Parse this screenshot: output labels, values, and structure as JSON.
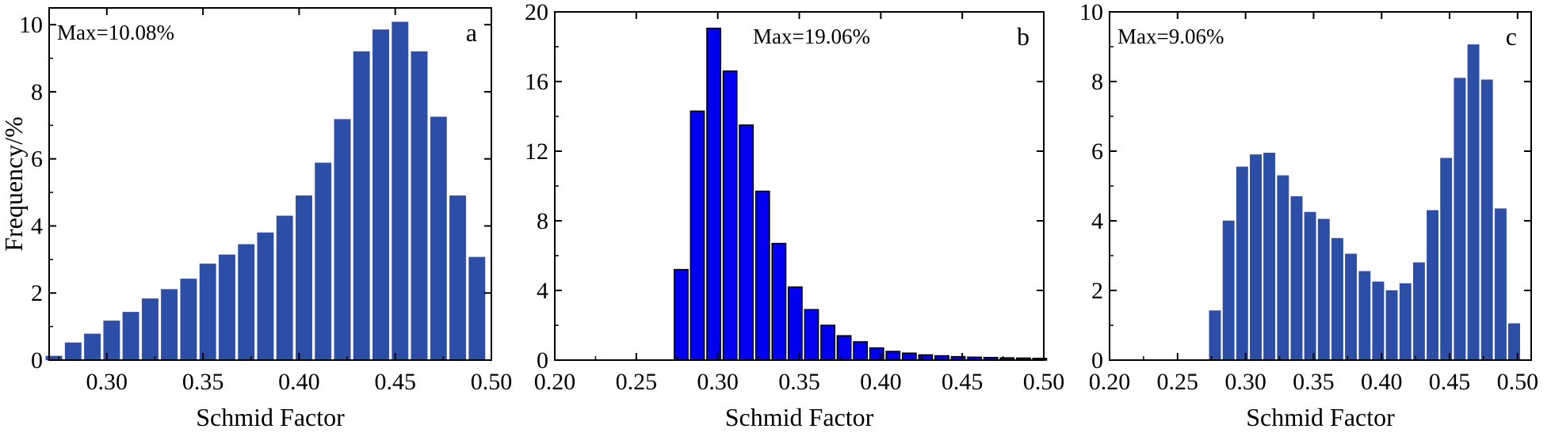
{
  "chart_data": [
    {
      "type": "bar",
      "panel_label": "a",
      "annotation": "Max=10.08%",
      "xlabel": "Schmid Factor",
      "ylabel": "Frequency/%",
      "xlim": [
        0.27,
        0.5
      ],
      "ylim": [
        0,
        10.5
      ],
      "xticks": [
        "0.30",
        "0.35",
        "0.40",
        "0.45",
        "0.50"
      ],
      "xtick_values": [
        0.3,
        0.35,
        0.4,
        0.45,
        0.5
      ],
      "yticks": [
        "0",
        "2",
        "4",
        "6",
        "8",
        "10"
      ],
      "ytick_values": [
        0,
        2,
        4,
        6,
        8,
        10
      ],
      "bar_color": "#2c4ea6",
      "bar_stroke": "#2c4ea6",
      "x": [
        0.2725,
        0.2825,
        0.2925,
        0.3025,
        0.3125,
        0.3225,
        0.3325,
        0.3425,
        0.3525,
        0.3625,
        0.3725,
        0.3825,
        0.3925,
        0.4025,
        0.4125,
        0.4225,
        0.4325,
        0.4425,
        0.4525,
        0.4625,
        0.4725,
        0.4825,
        0.4925
      ],
      "values": [
        0.12,
        0.52,
        0.78,
        1.17,
        1.43,
        1.83,
        2.11,
        2.42,
        2.87,
        3.14,
        3.45,
        3.8,
        4.3,
        4.9,
        5.88,
        7.18,
        9.2,
        9.85,
        10.08,
        9.2,
        7.25,
        4.9,
        3.07
      ]
    },
    {
      "type": "bar",
      "panel_label": "b",
      "annotation": "Max=19.06%",
      "xlabel": "Schmid Factor",
      "ylabel": "",
      "xlim": [
        0.2,
        0.5
      ],
      "ylim": [
        0,
        20
      ],
      "xticks": [
        "0.20",
        "0.25",
        "0.30",
        "0.35",
        "0.40",
        "0.45",
        "0.50"
      ],
      "xtick_values": [
        0.2,
        0.25,
        0.3,
        0.35,
        0.4,
        0.45,
        0.5
      ],
      "yticks": [
        "0",
        "4",
        "8",
        "12",
        "16",
        "20"
      ],
      "ytick_values": [
        0,
        4,
        8,
        12,
        16,
        20
      ],
      "bar_color": "#0000ee",
      "bar_stroke": "#000000",
      "x": [
        0.2775,
        0.2875,
        0.2975,
        0.3075,
        0.3175,
        0.3275,
        0.3375,
        0.3475,
        0.3575,
        0.3675,
        0.3775,
        0.3875,
        0.3975,
        0.4075,
        0.4175,
        0.4275,
        0.4375,
        0.4475,
        0.4575,
        0.4675,
        0.4775,
        0.4875,
        0.4975
      ],
      "values": [
        5.2,
        14.3,
        19.06,
        16.6,
        13.5,
        9.7,
        6.7,
        4.2,
        2.9,
        2.0,
        1.4,
        1.05,
        0.7,
        0.5,
        0.4,
        0.3,
        0.25,
        0.2,
        0.17,
        0.15,
        0.13,
        0.12,
        0.1
      ]
    },
    {
      "type": "bar",
      "panel_label": "c",
      "annotation": "Max=9.06%",
      "xlabel": "Schmid Factor",
      "ylabel": "",
      "xlim": [
        0.2,
        0.51
      ],
      "ylim": [
        0,
        10
      ],
      "xticks": [
        "0.20",
        "0.25",
        "0.30",
        "0.35",
        "0.40",
        "0.45",
        "0.50"
      ],
      "xtick_values": [
        0.2,
        0.25,
        0.3,
        0.35,
        0.4,
        0.45,
        0.5
      ],
      "yticks": [
        "0",
        "2",
        "4",
        "6",
        "8",
        "10"
      ],
      "ytick_values": [
        0,
        2,
        4,
        6,
        8,
        10
      ],
      "bar_color": "#2c4ea6",
      "bar_stroke": "#2c4ea6",
      "x": [
        0.2775,
        0.2875,
        0.2975,
        0.3075,
        0.3175,
        0.3275,
        0.3375,
        0.3475,
        0.3575,
        0.3675,
        0.3775,
        0.3875,
        0.3975,
        0.4075,
        0.4175,
        0.4275,
        0.4375,
        0.4475,
        0.4575,
        0.4675,
        0.4775,
        0.4875,
        0.4975
      ],
      "values": [
        1.42,
        4.0,
        5.55,
        5.9,
        5.95,
        5.3,
        4.7,
        4.25,
        4.05,
        3.5,
        3.05,
        2.55,
        2.25,
        2.0,
        2.2,
        2.8,
        4.3,
        5.8,
        8.1,
        9.06,
        8.05,
        4.35,
        1.05
      ]
    }
  ]
}
